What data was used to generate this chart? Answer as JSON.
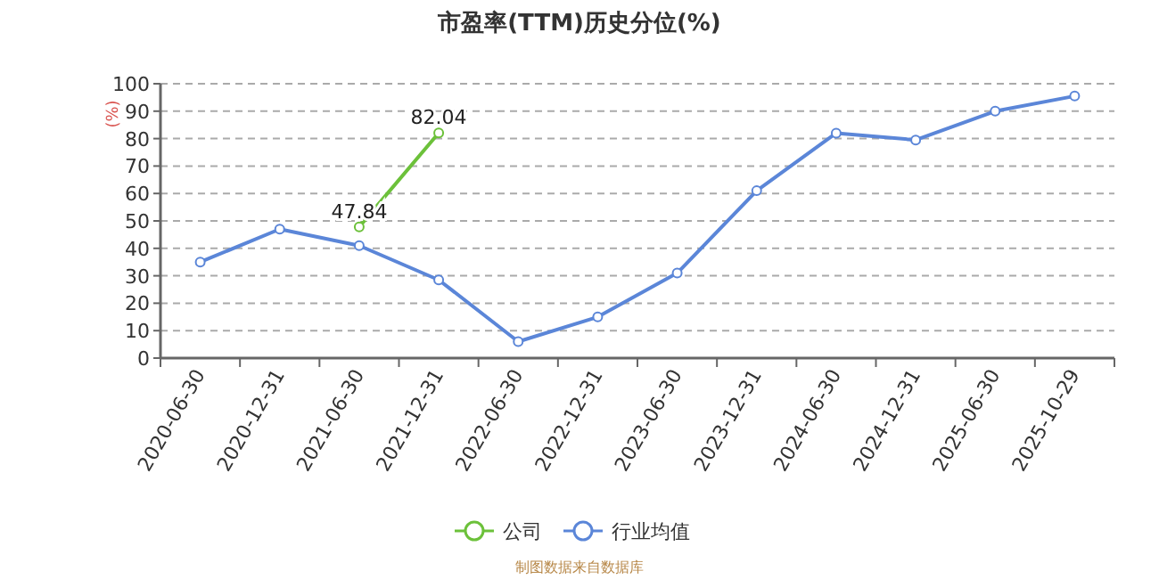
{
  "chart_data": {
    "type": "line",
    "title": "市盈率(TTM)历史分位(%)",
    "ylabel": "(%)",
    "categories": [
      "2020-06-30",
      "2020-12-31",
      "2021-06-30",
      "2021-12-31",
      "2022-06-30",
      "2022-12-31",
      "2023-06-30",
      "2023-12-31",
      "2024-06-30",
      "2024-12-31",
      "2025-06-30",
      "2025-10-29"
    ],
    "series": [
      {
        "name": "公司",
        "color": "#6cc13a",
        "values": [
          null,
          null,
          47.84,
          82.04,
          null,
          null,
          null,
          null,
          null,
          null,
          null,
          null
        ],
        "value_labels": [
          null,
          null,
          "47.84",
          "82.04",
          null,
          null,
          null,
          null,
          null,
          null,
          null,
          null
        ]
      },
      {
        "name": "行业均值",
        "color": "#5b86d8",
        "values": [
          35,
          47,
          41,
          28.5,
          6,
          15,
          31,
          61,
          82,
          79.5,
          90,
          95.5
        ]
      }
    ],
    "ylim": [
      0,
      100
    ],
    "yticks": [
      0,
      10,
      20,
      30,
      40,
      50,
      60,
      70,
      80,
      90,
      100
    ],
    "grid": "y",
    "legend": "bottom",
    "marker": "circle",
    "line_style": "solid",
    "annotations": [
      "制图数据来自数据库"
    ]
  }
}
